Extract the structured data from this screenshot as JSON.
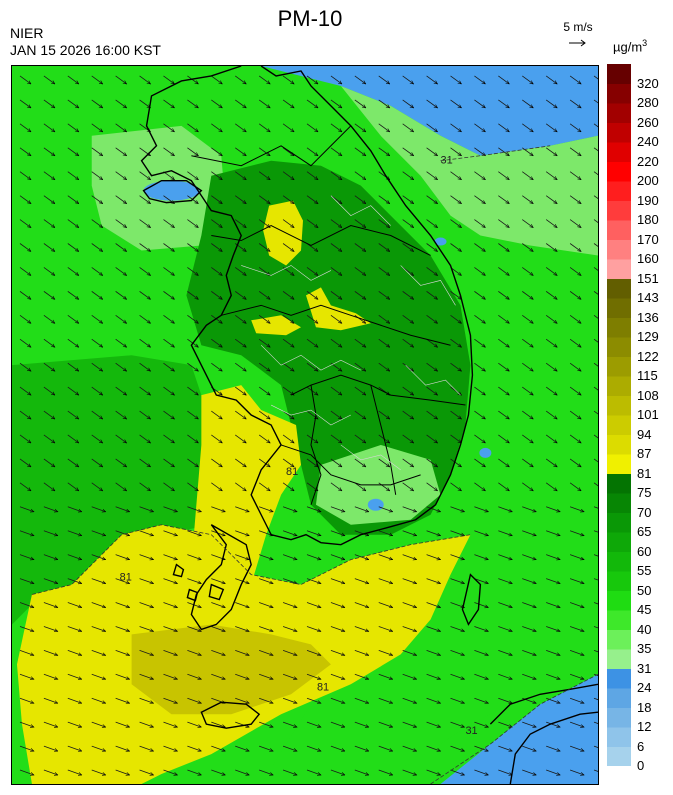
{
  "title": "PM-10",
  "agency": "NIER",
  "datetime": "JAN 15 2026 16:00 KST",
  "wind_reference": "5 m/s",
  "unit": {
    "base": "µg/m",
    "sup": "3"
  },
  "legend": [
    {
      "value": "0",
      "color": "#a6d2ec"
    },
    {
      "value": "6",
      "color": "#8fc4ea"
    },
    {
      "value": "12",
      "color": "#77b5e6"
    },
    {
      "value": "18",
      "color": "#5ea6e4"
    },
    {
      "value": "24",
      "color": "#3d92e4"
    },
    {
      "value": "31",
      "color": "#96f08c"
    },
    {
      "value": "35",
      "color": "#6cf05a"
    },
    {
      "value": "40",
      "color": "#3ee82a"
    },
    {
      "value": "45",
      "color": "#1fdc12"
    },
    {
      "value": "50",
      "color": "#17c80c"
    },
    {
      "value": "55",
      "color": "#12b80a"
    },
    {
      "value": "60",
      "color": "#0ea808"
    },
    {
      "value": "65",
      "color": "#0a9806"
    },
    {
      "value": "70",
      "color": "#078604"
    },
    {
      "value": "75",
      "color": "#047402"
    },
    {
      "value": "81",
      "color": "#f0f000"
    },
    {
      "value": "87",
      "color": "#dcdc00"
    },
    {
      "value": "94",
      "color": "#cccc00"
    },
    {
      "value": "101",
      "color": "#bcbc00"
    },
    {
      "value": "108",
      "color": "#acac00"
    },
    {
      "value": "115",
      "color": "#9c9c00"
    },
    {
      "value": "122",
      "color": "#8c8c00"
    },
    {
      "value": "129",
      "color": "#7e7e00"
    },
    {
      "value": "136",
      "color": "#706e00"
    },
    {
      "value": "143",
      "color": "#625e00"
    },
    {
      "value": "151",
      "color": "#ffa0a0"
    },
    {
      "value": "160",
      "color": "#ff8080"
    },
    {
      "value": "170",
      "color": "#ff6060"
    },
    {
      "value": "180",
      "color": "#ff3c3c"
    },
    {
      "value": "190",
      "color": "#ff1e1e"
    },
    {
      "value": "200",
      "color": "#ff0000"
    },
    {
      "value": "220",
      "color": "#e00000"
    },
    {
      "value": "240",
      "color": "#c00000"
    },
    {
      "value": "260",
      "color": "#a20000"
    },
    {
      "value": "280",
      "color": "#860000"
    },
    {
      "value": "320",
      "color": "#660000"
    }
  ],
  "contour_labels": [
    "31",
    "81",
    "81",
    "81",
    "31"
  ],
  "colors": {
    "sea_green": "#22dd18",
    "dark_green": "#0a9806",
    "mid_green": "#14b80c",
    "light_green": "#7de86a",
    "yellow": "#e6e600",
    "olive": "#c8c400",
    "blue": "#4aa0ee",
    "coastline": "#000000",
    "boundary": "#cccccc"
  }
}
